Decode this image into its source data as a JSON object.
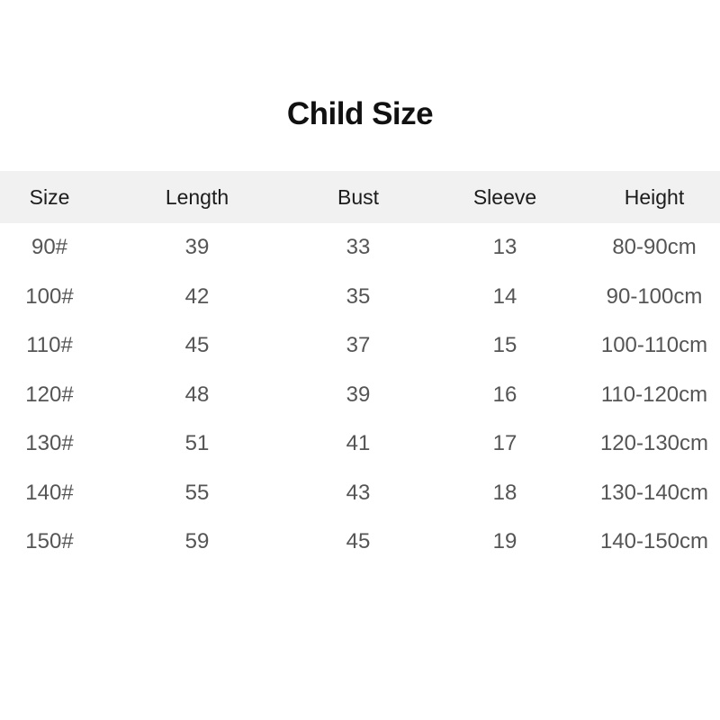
{
  "title": "Child Size",
  "table": {
    "header_bg": "#f1f1f1",
    "header_text_color": "#1c1c1c",
    "body_text_color": "#555555",
    "columns": [
      "Size",
      "Length",
      "Bust",
      "Sleeve",
      "Height"
    ],
    "rows": [
      [
        "90#",
        "39",
        "33",
        "13",
        "80-90cm"
      ],
      [
        "100#",
        "42",
        "35",
        "14",
        "90-100cm"
      ],
      [
        "110#",
        "45",
        "37",
        "15",
        "100-110cm"
      ],
      [
        "120#",
        "48",
        "39",
        "16",
        "110-120cm"
      ],
      [
        "130#",
        "51",
        "41",
        "17",
        "120-130cm"
      ],
      [
        "140#",
        "55",
        "43",
        "18",
        "130-140cm"
      ],
      [
        "150#",
        "59",
        "45",
        "19",
        "140-150cm"
      ]
    ]
  },
  "chart_data": {
    "type": "table",
    "title": "Child Size",
    "columns": [
      "Size",
      "Length",
      "Bust",
      "Sleeve",
      "Height"
    ],
    "rows": [
      [
        "90#",
        39,
        33,
        13,
        "80-90cm"
      ],
      [
        "100#",
        42,
        35,
        14,
        "90-100cm"
      ],
      [
        "110#",
        45,
        37,
        15,
        "100-110cm"
      ],
      [
        "120#",
        48,
        39,
        16,
        "110-120cm"
      ],
      [
        "130#",
        51,
        41,
        17,
        "120-130cm"
      ],
      [
        "140#",
        55,
        43,
        18,
        "130-140cm"
      ],
      [
        "150#",
        59,
        45,
        19,
        "140-150cm"
      ]
    ]
  }
}
